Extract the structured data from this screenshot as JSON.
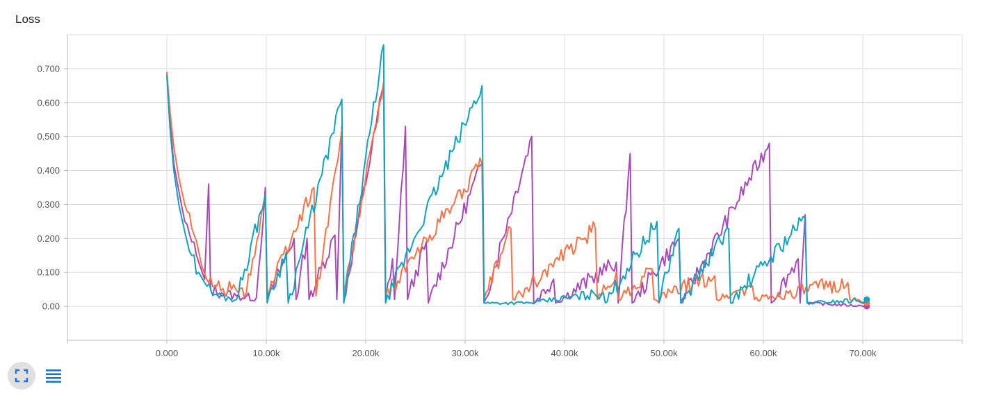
{
  "card": {
    "title": "Loss"
  },
  "controls": {
    "expand_icon": "fullscreen-icon",
    "menu_icon": "list-lines-icon",
    "accent": "#1976d2"
  },
  "chart_data": {
    "type": "line",
    "title": "Loss",
    "xlabel": "",
    "ylabel": "",
    "xlim": [
      -10000,
      80000
    ],
    "ylim": [
      -0.1,
      0.8
    ],
    "xticks": [
      0,
      10000,
      20000,
      30000,
      40000,
      50000,
      60000,
      70000
    ],
    "xtick_labels": [
      "0.000",
      "10.00k",
      "20.00k",
      "30.00k",
      "40.00k",
      "50.00k",
      "60.00k",
      "70.00k"
    ],
    "yticks": [
      0,
      0.1,
      0.2,
      0.3,
      0.4,
      0.5,
      0.6,
      0.7
    ],
    "ytick_labels": [
      "0.00",
      "0.100",
      "0.200",
      "0.300",
      "0.400",
      "0.500",
      "0.600",
      "0.700"
    ],
    "grid": true,
    "series": [
      {
        "color": "#ab47bc",
        "points": [
          [
            0,
            0.69
          ],
          [
            300,
            0.55
          ],
          [
            700,
            0.42
          ],
          [
            1200,
            0.34
          ],
          [
            1800,
            0.25
          ],
          [
            2500,
            0.19
          ],
          [
            3200,
            0.13
          ],
          [
            3800,
            0.08
          ],
          [
            4200,
            0.36
          ],
          [
            4400,
            0.05
          ],
          [
            5500,
            0.04
          ],
          [
            7000,
            0.03
          ],
          [
            9000,
            0.025
          ],
          [
            9900,
            0.35
          ],
          [
            10100,
            0.02
          ],
          [
            12800,
            0.2
          ],
          [
            13000,
            0.02
          ],
          [
            14100,
            0.2
          ],
          [
            14300,
            0.02
          ],
          [
            16900,
            0.21
          ],
          [
            17100,
            0.02
          ],
          [
            17600,
            0.53
          ],
          [
            17800,
            0.02
          ],
          [
            21800,
            0.65
          ],
          [
            22000,
            0.02
          ],
          [
            22700,
            0.14
          ],
          [
            22900,
            0.02
          ],
          [
            24000,
            0.53
          ],
          [
            24200,
            0.02
          ],
          [
            26100,
            0.19
          ],
          [
            26300,
            0.01
          ],
          [
            31700,
            0.42
          ],
          [
            31900,
            0.01
          ],
          [
            36700,
            0.5
          ],
          [
            36900,
            0.01
          ],
          [
            38900,
            0.08
          ],
          [
            39100,
            0.01
          ],
          [
            45200,
            0.13
          ],
          [
            45400,
            0.01
          ],
          [
            46600,
            0.45
          ],
          [
            46800,
            0.01
          ],
          [
            51500,
            0.2
          ],
          [
            51700,
            0.01
          ],
          [
            60600,
            0.48
          ],
          [
            60800,
            0.01
          ],
          [
            63500,
            0.14
          ],
          [
            63700,
            0.01
          ],
          [
            64200,
            0.27
          ],
          [
            64400,
            0.01
          ],
          [
            70400,
            0.0
          ]
        ]
      },
      {
        "color": "#ff7043",
        "points": [
          [
            0,
            0.69
          ],
          [
            300,
            0.58
          ],
          [
            700,
            0.47
          ],
          [
            1200,
            0.38
          ],
          [
            1800,
            0.3
          ],
          [
            2500,
            0.23
          ],
          [
            3000,
            0.19
          ],
          [
            3500,
            0.12
          ],
          [
            4000,
            0.08
          ],
          [
            5000,
            0.06
          ],
          [
            6500,
            0.05
          ],
          [
            8000,
            0.04
          ],
          [
            9900,
            0.33
          ],
          [
            10100,
            0.04
          ],
          [
            14800,
            0.35
          ],
          [
            15000,
            0.03
          ],
          [
            17600,
            0.52
          ],
          [
            17800,
            0.03
          ],
          [
            21800,
            0.66
          ],
          [
            22000,
            0.03
          ],
          [
            31700,
            0.42
          ],
          [
            31900,
            0.02
          ],
          [
            34600,
            0.23
          ],
          [
            34800,
            0.02
          ],
          [
            43100,
            0.23
          ],
          [
            43300,
            0.02
          ],
          [
            45200,
            0.1
          ],
          [
            45400,
            0.02
          ],
          [
            48800,
            0.11
          ],
          [
            49000,
            0.02
          ],
          [
            55100,
            0.09
          ],
          [
            55300,
            0.02
          ],
          [
            58900,
            0.06
          ],
          [
            59100,
            0.02
          ],
          [
            68500,
            0.07
          ],
          [
            68700,
            0.02
          ],
          [
            70400,
            0.01
          ]
        ]
      },
      {
        "color": "#0ca4c4",
        "points": [
          [
            0,
            0.68
          ],
          [
            300,
            0.53
          ],
          [
            700,
            0.4
          ],
          [
            1200,
            0.3
          ],
          [
            1800,
            0.22
          ],
          [
            2500,
            0.15
          ],
          [
            3200,
            0.1
          ],
          [
            3800,
            0.07
          ],
          [
            4500,
            0.04
          ],
          [
            5500,
            0.03
          ],
          [
            7000,
            0.02
          ],
          [
            9900,
            0.33
          ],
          [
            10100,
            0.01
          ],
          [
            12000,
            0.16
          ],
          [
            12200,
            0.01
          ],
          [
            17600,
            0.61
          ],
          [
            17800,
            0.01
          ],
          [
            21800,
            0.77
          ],
          [
            22000,
            0.01
          ],
          [
            31700,
            0.65
          ],
          [
            31900,
            0.01
          ],
          [
            36700,
            0.01
          ],
          [
            43900,
            0.04
          ],
          [
            44100,
            0.01
          ],
          [
            49300,
            0.25
          ],
          [
            49500,
            0.01
          ],
          [
            51500,
            0.23
          ],
          [
            51700,
            0.01
          ],
          [
            56500,
            0.23
          ],
          [
            56700,
            0.01
          ],
          [
            64200,
            0.26
          ],
          [
            64400,
            0.01
          ],
          [
            70400,
            0.02
          ]
        ]
      }
    ]
  }
}
